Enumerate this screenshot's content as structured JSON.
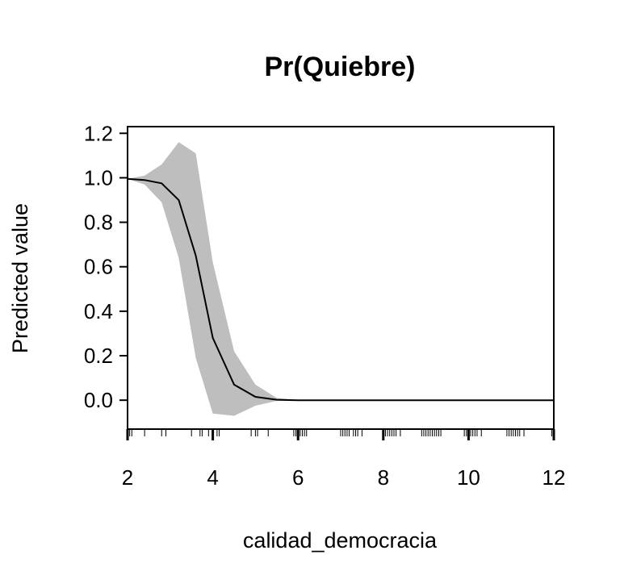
{
  "chart_data": {
    "type": "line",
    "title": "Pr(Quiebre)",
    "xlabel": "calidad_democracia",
    "ylabel": "Predicted value",
    "xlim": [
      2,
      12
    ],
    "ylim": [
      -0.13,
      1.23
    ],
    "x_ticks": [
      2,
      4,
      6,
      8,
      10,
      12
    ],
    "x_tick_labels": [
      "2",
      "4",
      "6",
      "8",
      "10",
      "12"
    ],
    "y_ticks": [
      0.0,
      0.2,
      0.4,
      0.6,
      0.8,
      1.0,
      1.2
    ],
    "y_tick_labels": [
      "0.0",
      "0.2",
      "0.4",
      "0.6",
      "0.8",
      "1.0",
      "1.2"
    ],
    "grid": false,
    "series": [
      {
        "x": [
          2.0,
          2.4,
          2.8,
          3.2,
          3.6,
          4.0,
          4.5,
          5.0,
          5.5,
          6.0,
          8.0,
          10.0,
          12.0
        ],
        "y": [
          0.995,
          0.99,
          0.975,
          0.9,
          0.65,
          0.28,
          0.07,
          0.015,
          0.002,
          0.0,
          0.0,
          0.0,
          0.0
        ],
        "lower": [
          0.995,
          0.97,
          0.89,
          0.64,
          0.19,
          -0.06,
          -0.07,
          -0.025,
          -0.003,
          0.0,
          0.0,
          0.0,
          0.0
        ],
        "upper": [
          0.995,
          1.01,
          1.06,
          1.16,
          1.11,
          0.62,
          0.22,
          0.07,
          0.01,
          0.0,
          0.0,
          0.0,
          0.0
        ]
      }
    ],
    "band_color": "#bebebe",
    "line_color": "#000000",
    "rug_x": [
      2.05,
      2.1,
      2.4,
      2.8,
      2.9,
      3.5,
      3.7,
      3.75,
      3.9,
      4.0,
      4.1,
      4.15,
      4.9,
      5.0,
      5.05,
      5.3,
      5.9,
      5.95,
      6.0,
      6.05,
      6.1,
      6.15,
      6.2,
      7.0,
      7.05,
      7.1,
      7.15,
      7.2,
      7.3,
      7.35,
      7.4,
      7.5,
      8.0,
      8.05,
      8.1,
      8.15,
      8.2,
      8.25,
      8.3,
      8.4,
      8.9,
      8.95,
      9.0,
      9.05,
      9.1,
      9.15,
      9.2,
      9.25,
      9.3,
      9.35,
      9.9,
      9.95,
      10.0,
      10.05,
      10.1,
      10.15,
      10.2,
      10.3,
      10.9,
      10.95,
      11.0,
      11.05,
      11.1,
      11.15,
      11.2,
      11.3,
      11.95,
      12.0
    ]
  }
}
